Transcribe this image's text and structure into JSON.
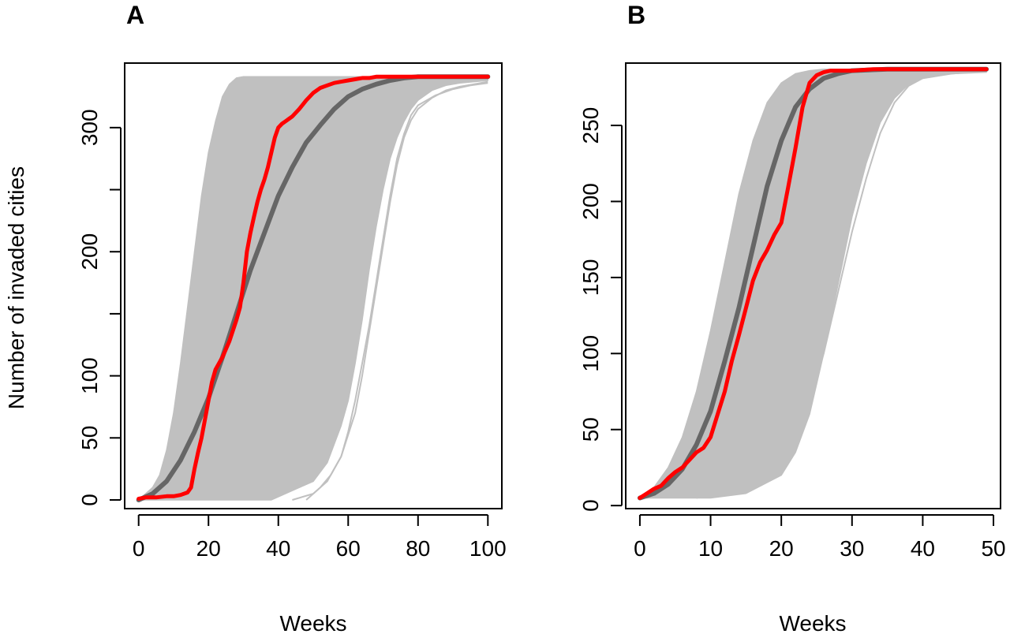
{
  "figure": {
    "shared_ylabel": "Number of invaded cities"
  },
  "chart_data": [
    {
      "panel": "A",
      "type": "line",
      "title": "",
      "xlabel": "Weeks",
      "ylabel": "Number of invaded cities",
      "xlim": [
        -4,
        104
      ],
      "ylim": [
        -7,
        352
      ],
      "xticks": [
        0,
        20,
        40,
        60,
        80,
        100
      ],
      "yticks": [
        0,
        50,
        100,
        150,
        200,
        250,
        300
      ],
      "ytick_labels": [
        "0",
        "50",
        "100",
        "",
        "200",
        "",
        "300"
      ],
      "grid": false,
      "legend": "none",
      "simulation_envelope": {
        "name": "",
        "color": "#c0c0c0",
        "upper": {
          "x": [
            0,
            4,
            6,
            8,
            10,
            12,
            14,
            16,
            18,
            20,
            22,
            24,
            26,
            28,
            30,
            32,
            34,
            36,
            38,
            40,
            44,
            48,
            52,
            56,
            60,
            64,
            68,
            72,
            76,
            80,
            84,
            88,
            92,
            96,
            100
          ],
          "y": [
            0,
            10,
            20,
            40,
            70,
            110,
            155,
            200,
            245,
            280,
            305,
            325,
            335,
            340,
            341,
            341,
            341,
            341,
            341,
            341,
            341,
            341,
            341,
            341,
            341,
            341,
            341,
            341,
            341,
            341,
            341,
            341,
            341,
            341,
            341
          ]
        },
        "lower": {
          "x": [
            0,
            10,
            20,
            30,
            38,
            42,
            46,
            50,
            54,
            58,
            60,
            62,
            64,
            66,
            68,
            70,
            72,
            74,
            76,
            78,
            80,
            84,
            88,
            92,
            96,
            100
          ],
          "y": [
            0,
            0,
            0,
            0,
            0,
            5,
            10,
            15,
            30,
            60,
            80,
            110,
            145,
            185,
            220,
            250,
            275,
            292,
            305,
            315,
            322,
            330,
            334,
            336,
            337,
            338
          ]
        },
        "outliers": [
          {
            "x": [
              48,
              52,
              55,
              58,
              60,
              62,
              64,
              66,
              68,
              70,
              72,
              74,
              76,
              78,
              80,
              85,
              90,
              95,
              100
            ],
            "y": [
              0,
              10,
              20,
              35,
              55,
              80,
              110,
              140,
              175,
              210,
              245,
              275,
              295,
              310,
              318,
              326,
              331,
              334,
              336
            ]
          },
          {
            "x": [
              44,
              50,
              54,
              58,
              62,
              64,
              66,
              68,
              70,
              72,
              74,
              76,
              78,
              80,
              84,
              88,
              92,
              96,
              100
            ],
            "y": [
              0,
              5,
              15,
              35,
              70,
              100,
              135,
              170,
              205,
              240,
              270,
              292,
              306,
              315,
              324,
              330,
              333,
              335,
              337
            ]
          }
        ]
      },
      "series": [
        {
          "name": "",
          "color": "#666666",
          "x": [
            0,
            4,
            8,
            12,
            16,
            20,
            24,
            28,
            32,
            36,
            40,
            44,
            48,
            52,
            56,
            60,
            64,
            68,
            72,
            76,
            80,
            84,
            88,
            92,
            96,
            100
          ],
          "y": [
            0,
            5,
            15,
            32,
            55,
            82,
            115,
            150,
            185,
            215,
            245,
            268,
            288,
            302,
            315,
            325,
            331,
            335,
            338,
            340,
            341,
            341,
            341,
            341,
            341,
            341
          ]
        },
        {
          "name": "",
          "color": "#ff0000",
          "x": [
            0,
            2,
            5,
            8,
            10,
            12,
            14,
            15,
            16,
            17,
            18,
            19,
            20,
            21,
            22,
            24,
            26,
            28,
            29,
            30,
            31,
            32,
            33,
            34,
            35,
            36,
            37,
            38,
            39,
            40,
            41,
            42,
            43,
            44,
            46,
            48,
            50,
            52,
            54,
            56,
            58,
            60,
            62,
            64,
            66,
            68,
            70,
            80,
            90,
            100
          ],
          "y": [
            1,
            2,
            2,
            3,
            3,
            4,
            6,
            10,
            25,
            38,
            50,
            65,
            80,
            95,
            105,
            115,
            128,
            145,
            155,
            175,
            200,
            215,
            228,
            240,
            250,
            258,
            268,
            280,
            292,
            300,
            303,
            305,
            307,
            309,
            315,
            322,
            328,
            332,
            334,
            336,
            337,
            338,
            339,
            340,
            340,
            341,
            341,
            341,
            341,
            341
          ]
        }
      ]
    },
    {
      "panel": "B",
      "type": "line",
      "title": "",
      "xlabel": "Weeks",
      "ylabel": "",
      "xlim": [
        -2,
        51
      ],
      "ylim": [
        -2,
        291
      ],
      "xticks": [
        0,
        10,
        20,
        30,
        40,
        50
      ],
      "yticks": [
        0,
        50,
        100,
        150,
        200,
        250
      ],
      "ytick_labels": [
        "0",
        "50",
        "100",
        "150",
        "200",
        "250"
      ],
      "grid": false,
      "legend": "none",
      "simulation_envelope": {
        "name": "",
        "color": "#c0c0c0",
        "upper": {
          "x": [
            0,
            2,
            4,
            6,
            8,
            10,
            12,
            14,
            16,
            18,
            20,
            22,
            24,
            26,
            30,
            40,
            49
          ],
          "y": [
            5,
            12,
            25,
            45,
            75,
            115,
            160,
            205,
            240,
            265,
            278,
            284,
            286,
            287,
            287,
            287,
            287
          ]
        },
        "lower": {
          "x": [
            0,
            5,
            10,
            15,
            20,
            22,
            24,
            26,
            28,
            30,
            32,
            34,
            36,
            38,
            40,
            44,
            49
          ],
          "y": [
            5,
            5,
            5,
            8,
            20,
            35,
            60,
            100,
            145,
            190,
            225,
            252,
            268,
            277,
            281,
            284,
            285
          ]
        },
        "outliers": [
          {
            "x": [
              8,
              12,
              16,
              20,
              22,
              24,
              26,
              28,
              30,
              32,
              34,
              36,
              38,
              40,
              44,
              49
            ],
            "y": [
              5,
              10,
              20,
              35,
              50,
              70,
              100,
              140,
              180,
              215,
              245,
              265,
              276,
              281,
              284,
              286
            ]
          }
        ]
      },
      "series": [
        {
          "name": "",
          "color": "#666666",
          "x": [
            0,
            2,
            4,
            6,
            8,
            10,
            12,
            14,
            16,
            18,
            20,
            22,
            24,
            26,
            28,
            30,
            35,
            40,
            45,
            49
          ],
          "y": [
            5,
            8,
            14,
            24,
            40,
            62,
            95,
            130,
            170,
            210,
            240,
            262,
            274,
            281,
            284,
            286,
            287,
            287,
            287,
            287
          ]
        },
        {
          "name": "",
          "color": "#ff0000",
          "x": [
            0,
            1,
            2,
            3,
            4,
            5,
            6,
            7,
            8,
            9,
            10,
            11,
            12,
            13,
            14,
            15,
            16,
            17,
            18,
            19,
            20,
            21,
            22,
            23,
            24,
            25,
            26,
            27,
            28,
            30,
            33,
            35,
            40,
            45,
            49
          ],
          "y": [
            5,
            8,
            11,
            13,
            18,
            22,
            25,
            30,
            35,
            38,
            45,
            60,
            75,
            95,
            112,
            130,
            148,
            160,
            168,
            178,
            186,
            210,
            235,
            262,
            278,
            283,
            285,
            286,
            286,
            286,
            287,
            287,
            287,
            287,
            287
          ]
        }
      ]
    }
  ]
}
